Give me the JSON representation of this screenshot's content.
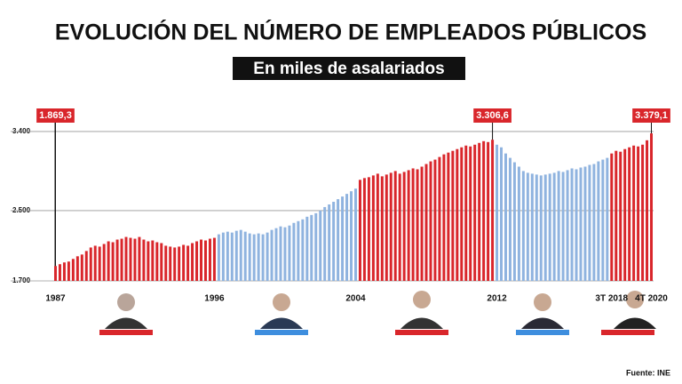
{
  "chart_data": {
    "type": "bar",
    "title": "EVOLUCIÓN DEL NÚMERO DE EMPLEADOS PÚBLICOS",
    "subtitle": "En miles de asalariados",
    "source": "Fuente: INE",
    "categories": [
      "1987",
      null,
      null,
      null,
      null,
      null,
      null,
      null,
      null,
      null,
      null,
      null,
      null,
      null,
      null,
      null,
      null,
      null,
      null,
      null,
      null,
      null,
      null,
      null,
      null,
      null,
      null,
      null,
      null,
      null,
      null,
      null,
      null,
      null,
      null,
      null,
      "1996",
      null,
      null,
      null,
      null,
      null,
      null,
      null,
      null,
      null,
      null,
      null,
      null,
      null,
      null,
      null,
      null,
      null,
      null,
      null,
      null,
      null,
      null,
      null,
      null,
      null,
      null,
      null,
      null,
      null,
      null,
      null,
      "2004",
      null,
      null,
      null,
      null,
      null,
      null,
      null,
      null,
      null,
      null,
      null,
      null,
      null,
      null,
      null,
      null,
      null,
      null,
      null,
      null,
      null,
      null,
      null,
      null,
      null,
      null,
      null,
      null,
      null,
      null,
      null,
      "2012",
      null,
      null,
      null,
      null,
      null,
      null,
      null,
      null,
      null,
      null,
      null,
      null,
      null,
      null,
      null,
      null,
      null,
      null,
      null,
      null,
      null,
      null,
      null,
      null,
      null,
      "3T 2018",
      null,
      null,
      null,
      null,
      null,
      null,
      null,
      null,
      "4T 2020"
    ],
    "values": [
      1869.3,
      1890,
      1910,
      1920,
      1950,
      1980,
      2000,
      2040,
      2080,
      2100,
      2090,
      2120,
      2150,
      2140,
      2170,
      2180,
      2200,
      2190,
      2180,
      2200,
      2170,
      2150,
      2160,
      2140,
      2130,
      2100,
      2090,
      2080,
      2090,
      2110,
      2100,
      2130,
      2150,
      2170,
      2160,
      2180,
      2190,
      2230,
      2250,
      2260,
      2250,
      2270,
      2280,
      2260,
      2240,
      2230,
      2240,
      2230,
      2250,
      2280,
      2300,
      2320,
      2310,
      2330,
      2360,
      2380,
      2400,
      2430,
      2450,
      2470,
      2500,
      2540,
      2570,
      2600,
      2630,
      2660,
      2690,
      2720,
      2750,
      2850,
      2870,
      2880,
      2900,
      2920,
      2890,
      2910,
      2930,
      2950,
      2920,
      2940,
      2960,
      2980,
      2970,
      3000,
      3030,
      3060,
      3080,
      3110,
      3140,
      3160,
      3180,
      3200,
      3220,
      3240,
      3230,
      3250,
      3270,
      3290,
      3280,
      3306.6,
      3250,
      3220,
      3150,
      3100,
      3050,
      3000,
      2950,
      2930,
      2920,
      2910,
      2900,
      2910,
      2920,
      2930,
      2950,
      2940,
      2960,
      2980,
      2970,
      2990,
      3000,
      3020,
      3030,
      3060,
      3080,
      3100,
      3150,
      3180,
      3170,
      3200,
      3220,
      3240,
      3230,
      3250,
      3300,
      3379.1
    ],
    "value_labels": [
      "1.869,3",
      null,
      null,
      null,
      null,
      null,
      null,
      null,
      null,
      null,
      null,
      null,
      null,
      null,
      null,
      null,
      null,
      null,
      null,
      null,
      null,
      null,
      null,
      null,
      null,
      null,
      null,
      null,
      null,
      null,
      null,
      null,
      null,
      null,
      null,
      null,
      null,
      null,
      null,
      null,
      null,
      null,
      null,
      null,
      null,
      null,
      null,
      null,
      null,
      null,
      null,
      null,
      null,
      null,
      null,
      null,
      null,
      null,
      null,
      null,
      null,
      null,
      null,
      null,
      null,
      null,
      null,
      null,
      null,
      null,
      null,
      null,
      null,
      null,
      null,
      null,
      null,
      null,
      null,
      null,
      null,
      null,
      null,
      null,
      null,
      null,
      null,
      null,
      null,
      null,
      null,
      null,
      null,
      null,
      null,
      null,
      null,
      null,
      null,
      "3.306,6",
      null,
      null,
      null,
      null,
      null,
      null,
      null,
      null,
      null,
      null,
      null,
      null,
      null,
      null,
      null,
      null,
      null,
      null,
      null,
      null,
      null,
      null,
      null,
      null,
      null,
      null,
      null,
      null,
      null,
      null,
      null,
      null,
      null,
      null,
      null,
      "3.379,1"
    ],
    "colors": [
      "#d9262b",
      "#d9262b",
      "#d9262b",
      "#d9262b",
      "#d9262b",
      "#d9262b",
      "#d9262b",
      "#d9262b",
      "#d9262b",
      "#d9262b",
      "#d9262b",
      "#d9262b",
      "#d9262b",
      "#d9262b",
      "#d9262b",
      "#d9262b",
      "#d9262b",
      "#d9262b",
      "#d9262b",
      "#d9262b",
      "#d9262b",
      "#d9262b",
      "#d9262b",
      "#d9262b",
      "#d9262b",
      "#d9262b",
      "#d9262b",
      "#d9262b",
      "#d9262b",
      "#d9262b",
      "#d9262b",
      "#d9262b",
      "#d9262b",
      "#d9262b",
      "#d9262b",
      "#d9262b",
      "#d9262b",
      "#8fb3df",
      "#8fb3df",
      "#8fb3df",
      "#8fb3df",
      "#8fb3df",
      "#8fb3df",
      "#8fb3df",
      "#8fb3df",
      "#8fb3df",
      "#8fb3df",
      "#8fb3df",
      "#8fb3df",
      "#8fb3df",
      "#8fb3df",
      "#8fb3df",
      "#8fb3df",
      "#8fb3df",
      "#8fb3df",
      "#8fb3df",
      "#8fb3df",
      "#8fb3df",
      "#8fb3df",
      "#8fb3df",
      "#8fb3df",
      "#8fb3df",
      "#8fb3df",
      "#8fb3df",
      "#8fb3df",
      "#8fb3df",
      "#8fb3df",
      "#8fb3df",
      "#8fb3df",
      "#d9262b",
      "#d9262b",
      "#d9262b",
      "#d9262b",
      "#d9262b",
      "#d9262b",
      "#d9262b",
      "#d9262b",
      "#d9262b",
      "#d9262b",
      "#d9262b",
      "#d9262b",
      "#d9262b",
      "#d9262b",
      "#d9262b",
      "#d9262b",
      "#d9262b",
      "#d9262b",
      "#d9262b",
      "#d9262b",
      "#d9262b",
      "#d9262b",
      "#d9262b",
      "#d9262b",
      "#d9262b",
      "#d9262b",
      "#d9262b",
      "#d9262b",
      "#d9262b",
      "#d9262b",
      "#d9262b",
      "#8fb3df",
      "#8fb3df",
      "#8fb3df",
      "#8fb3df",
      "#8fb3df",
      "#8fb3df",
      "#8fb3df",
      "#8fb3df",
      "#8fb3df",
      "#8fb3df",
      "#8fb3df",
      "#8fb3df",
      "#8fb3df",
      "#8fb3df",
      "#8fb3df",
      "#8fb3df",
      "#8fb3df",
      "#8fb3df",
      "#8fb3df",
      "#8fb3df",
      "#8fb3df",
      "#8fb3df",
      "#8fb3df",
      "#8fb3df",
      "#8fb3df",
      "#8fb3df",
      "#d9262b",
      "#d9262b",
      "#d9262b",
      "#d9262b",
      "#d9262b",
      "#d9262b",
      "#d9262b",
      "#d9262b",
      "#d9262b",
      "#d9262b"
    ],
    "ylim": [
      1700,
      3450
    ],
    "yticks": [
      {
        "value": 1700,
        "label": "1.700"
      },
      {
        "value": 2500,
        "label": "2.500"
      },
      {
        "value": 3400,
        "label": "3.400"
      }
    ],
    "grid": true
  }
}
